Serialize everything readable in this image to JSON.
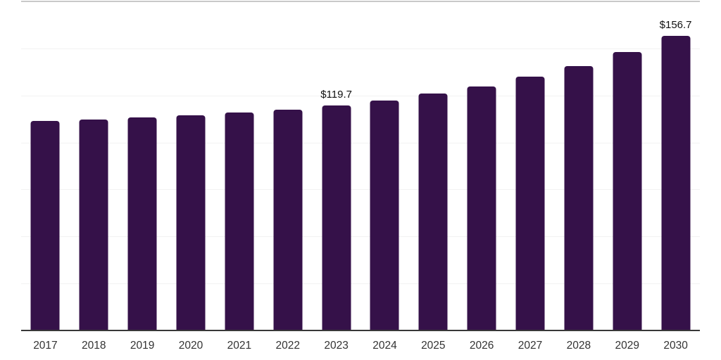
{
  "chart_data": {
    "type": "bar",
    "title": "",
    "xlabel": "",
    "ylabel": "",
    "categories": [
      "2017",
      "2018",
      "2019",
      "2020",
      "2021",
      "2022",
      "2023",
      "2024",
      "2025",
      "2026",
      "2027",
      "2028",
      "2029",
      "2030"
    ],
    "values": [
      111.4,
      112.3,
      113.3,
      114.3,
      115.8,
      117.5,
      119.7,
      122.3,
      126.0,
      129.6,
      135.1,
      140.7,
      148.1,
      156.7
    ],
    "point_labels": {
      "2023": "$119.7",
      "2030": "$156.7"
    },
    "ylim": [
      0,
      175
    ],
    "grid_step": 25,
    "grid": "horizontal",
    "legend": "none",
    "colors": {
      "bar": "#351149",
      "grid": "#f2f2f2",
      "plot_top_border": "#c9c9c9",
      "axis_line": "#383838",
      "tick_label": "#333333",
      "value_label": "#111111",
      "background": "#ffffff"
    }
  }
}
